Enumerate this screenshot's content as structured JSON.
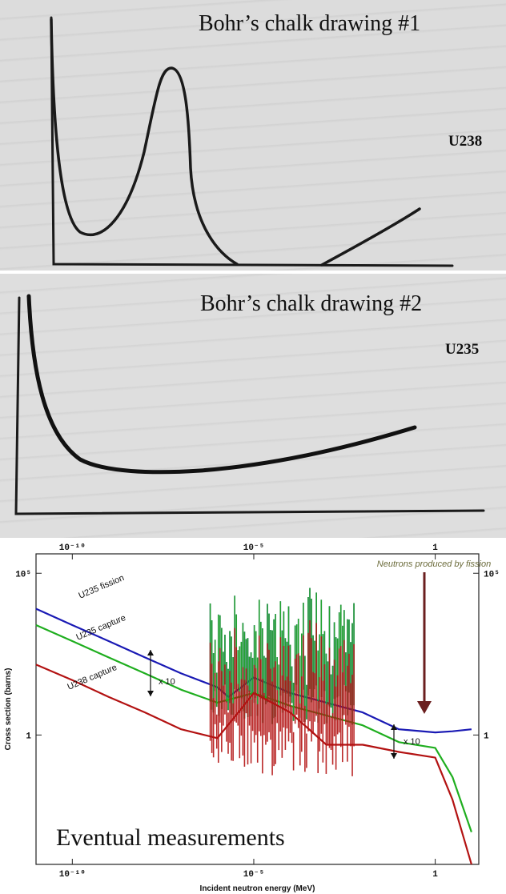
{
  "panels": {
    "drawing1": {
      "caption": "Bohr’s chalk drawing #1",
      "isotope": "U238"
    },
    "drawing2": {
      "caption": "Bohr’s chalk drawing #2",
      "isotope": "U235"
    },
    "measurements": {
      "caption": "Eventual measurements"
    }
  },
  "chart_data": {
    "type": "line",
    "xlabel": "Incident neutron energy (MeV)",
    "ylabel": "Cross section (barns)",
    "xscale": "log",
    "yscale": "log",
    "xticks": [
      "10⁻¹⁰",
      "10⁻⁵",
      "1"
    ],
    "yticks": [
      "10⁵",
      "1"
    ],
    "annotations": [
      {
        "text": "Neutrons produced by fission",
        "arrow_at_x": 1
      },
      {
        "text": "x 10",
        "between": [
          "U235 fission",
          "U235 capture"
        ]
      },
      {
        "text": "x 10",
        "between": [
          "U235 capture",
          "U238 capture"
        ]
      }
    ],
    "colors": {
      "U235 fission": "#1a1ab4",
      "U235 capture": "#1fae1f",
      "U238 capture": "#b31212",
      "arrow": "#6b1f1f"
    },
    "series": [
      {
        "name": "U235 fission",
        "x": [
          1e-11,
          1e-10,
          1e-09,
          1e-08,
          1e-07,
          1e-06,
          2e-06,
          1e-05,
          0.0001,
          0.001,
          0.01,
          0.1,
          1,
          3,
          10
        ],
        "y": [
          8000,
          2500,
          800,
          250,
          80,
          30,
          15,
          60,
          20,
          10,
          5,
          1.5,
          1.2,
          1.3,
          1.5
        ]
      },
      {
        "name": "U235 capture",
        "x": [
          1e-11,
          1e-10,
          1e-09,
          1e-08,
          1e-07,
          1e-06,
          1e-05,
          0.0001,
          0.001,
          0.01,
          0.1,
          1,
          3,
          10
        ],
        "y": [
          2500,
          800,
          250,
          80,
          25,
          10,
          20,
          8,
          4,
          2,
          0.6,
          0.4,
          0.05,
          0.001
        ]
      },
      {
        "name": "U238 capture",
        "x": [
          1e-11,
          1e-10,
          1e-09,
          1e-08,
          1e-07,
          1e-06,
          1e-05,
          0.0001,
          0.001,
          0.01,
          0.1,
          1,
          3,
          10
        ],
        "y": [
          150,
          50,
          15,
          5,
          1.5,
          0.8,
          20,
          5,
          0.5,
          0.5,
          0.3,
          0.2,
          0.01,
          0.0001
        ]
      }
    ]
  }
}
